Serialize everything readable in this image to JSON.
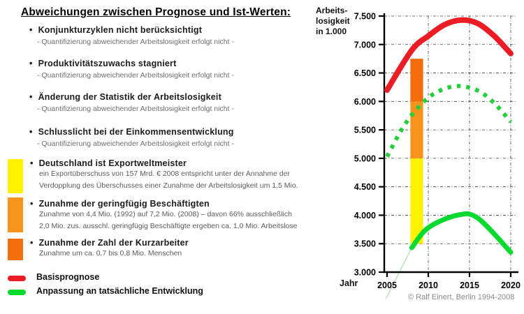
{
  "title": "Abweichungen zwischen Prognose und Ist-Werten:",
  "bullets": [
    {
      "header": "Konjunkturzyklen nicht berücksichtigt",
      "sub": "- Quantifizierung abweichender Arbeitslosigkeit erfolgt nicht -"
    },
    {
      "header": "Produktivitätszuwachs stagniert",
      "sub": "- Quantifizierung abweichender Arbeitslosigkeit erfolgt nicht -"
    },
    {
      "header": "Änderung der Statistik der Arbeitslosigkeit",
      "sub": "- Quantifizierung abweichender Arbeitslosigkeit erfolgt nicht -"
    },
    {
      "header": "Schlusslicht bei der Einkommensentwicklung",
      "sub": "- Quantifizierung abweichender Arbeitslosigkeit erfolgt nicht -"
    }
  ],
  "blocks": [
    {
      "color": "#FFF200",
      "header": "Deutschland ist Exportweltmeister",
      "lines": [
        "ein Exportüberschuss von 157 Mrd. € 2008 entspricht unter der Annahme der",
        "Verdopplung des Überschusses einer Zunahme der Arbeitslosigkeit um 1,5 Mio."
      ]
    },
    {
      "color": "#F7941E",
      "header": "Zunahme der geringfügig Beschäftigten",
      "lines": [
        "Zunahme von 4,4 Mio. (1992) auf 7,2 Mio. (2008) – davon 66% ausschließlich",
        "2,0 Mio. zus. ausschl. geringfügig Beschäftigte ergeben ca. 1,0 Mio. Arbeitslose"
      ]
    },
    {
      "color": "#F26D0C",
      "header": "Zunahme der Zahl der Kurzarbeiter",
      "lines": [
        "Zunahme um ca. 0,7 bis 0,8 Mio. Menschen"
      ]
    }
  ],
  "line_legend": [
    {
      "color": "#EC1C24",
      "label": "Basisprognose"
    },
    {
      "color": "#06DA2F",
      "label": "Anpassung an tatsächliche Entwicklung"
    }
  ],
  "chart_data": {
    "type": "line",
    "title": "",
    "ylabel_lines": [
      "Arbeits-",
      "losigkeit",
      "in 1.000"
    ],
    "xlabel": "Jahr",
    "xlim": [
      2005,
      2020
    ],
    "ylim": [
      3000,
      7500
    ],
    "yticks": [
      "7.500",
      "7.000",
      "6.500",
      "6.000",
      "5.500",
      "5.000",
      "4.500",
      "4.000",
      "3.500",
      "3.000"
    ],
    "xticks": [
      "2005",
      "2010",
      "2015",
      "2020"
    ],
    "grid": true,
    "legend_position": "bottom-left panel",
    "series": [
      {
        "name": "Basisprognose",
        "color": "#EC1C24",
        "style": "solid",
        "x": [
          2005,
          2008,
          2010,
          2012,
          2014,
          2016,
          2018,
          2020
        ],
        "y": [
          6200,
          6900,
          7150,
          7350,
          7430,
          7370,
          7150,
          6840
        ]
      },
      {
        "name": "Anpassung an tatsächliche Entwicklung (Prognose, gestrichelt)",
        "color": "#27CE3B",
        "style": "dashed",
        "x": [
          2005,
          2007,
          2009,
          2011,
          2013.5,
          2016,
          2018,
          2020
        ],
        "y": [
          5030,
          5560,
          5930,
          6160,
          6270,
          6190,
          5970,
          5640
        ]
      },
      {
        "name": "Anpassung an tatsächliche Entwicklung",
        "color": "#06DA2F",
        "style": "solid",
        "x": [
          2008,
          2010,
          2013.5,
          2016,
          2020
        ],
        "y": [
          3430,
          3780,
          4000,
          3950,
          3350
        ]
      }
    ],
    "bar": {
      "x_year": 2008.6,
      "width_years": 1.55,
      "segments": [
        {
          "from": 3500,
          "to": 5000,
          "color": "#FFF200",
          "meaning": "Exportweltmeister +1,5 Mio."
        },
        {
          "from": 5000,
          "to": 6000,
          "color": "#F7941E",
          "meaning": "geringfügig Beschäftigte +1,0 Mio."
        },
        {
          "from": 6000,
          "to": 6750,
          "color": "#F26D0C",
          "meaning": "Kurzarbeiter +0,75 Mio."
        }
      ]
    },
    "hint_line": {
      "x": [
        2004.85,
        2008
      ],
      "y": [
        2530,
        3430
      ],
      "color": "#BEE4BE"
    },
    "copyright": "© Ralf Einert, Berlin 1994-2008"
  }
}
